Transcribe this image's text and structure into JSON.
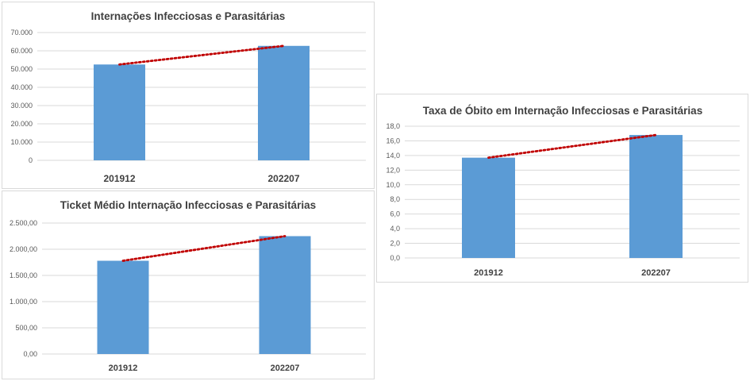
{
  "colors": {
    "bar": "#5b9bd5",
    "trendline": "#c00000",
    "grid": "#d9d9d9",
    "text": "#404040"
  },
  "chart_data": [
    {
      "type": "bar",
      "title": "Internações Infecciosas e Parasitárias",
      "categories": [
        "201912",
        "202207"
      ],
      "values": [
        52500,
        62700
      ],
      "ylim": [
        0,
        70000
      ],
      "yticks": [
        0,
        10000,
        20000,
        30000,
        40000,
        50000,
        60000,
        70000
      ],
      "ytick_labels": [
        "0",
        "10.000",
        "20.000",
        "30.000",
        "40.000",
        "50.000",
        "60.000",
        "70.000"
      ],
      "grid": true,
      "trendline": "linear, dotted"
    },
    {
      "type": "bar",
      "title": "Ticket Médio Internação Infecciosas e Parasitárias",
      "categories": [
        "201912",
        "202207"
      ],
      "values": [
        1780,
        2250
      ],
      "ylim": [
        0,
        2500
      ],
      "yticks": [
        0,
        500,
        1000,
        1500,
        2000,
        2500
      ],
      "ytick_labels": [
        "0,00",
        "500,00",
        "1.000,00",
        "1.500,00",
        "2.000,00",
        "2.500,00"
      ],
      "grid": true,
      "trendline": "linear, dotted"
    },
    {
      "type": "bar",
      "title": "Taxa de Óbito em Internação Infecciosas e Parasitárias",
      "categories": [
        "201912",
        "202207"
      ],
      "values": [
        13.7,
        16.8
      ],
      "ylim": [
        0,
        18
      ],
      "yticks": [
        0,
        2,
        4,
        6,
        8,
        10,
        12,
        14,
        16,
        18
      ],
      "ytick_labels": [
        "0,0",
        "2,0",
        "4,0",
        "6,0",
        "8,0",
        "10,0",
        "12,0",
        "14,0",
        "16,0",
        "18,0"
      ],
      "grid": true,
      "trendline": "linear, dotted"
    }
  ]
}
